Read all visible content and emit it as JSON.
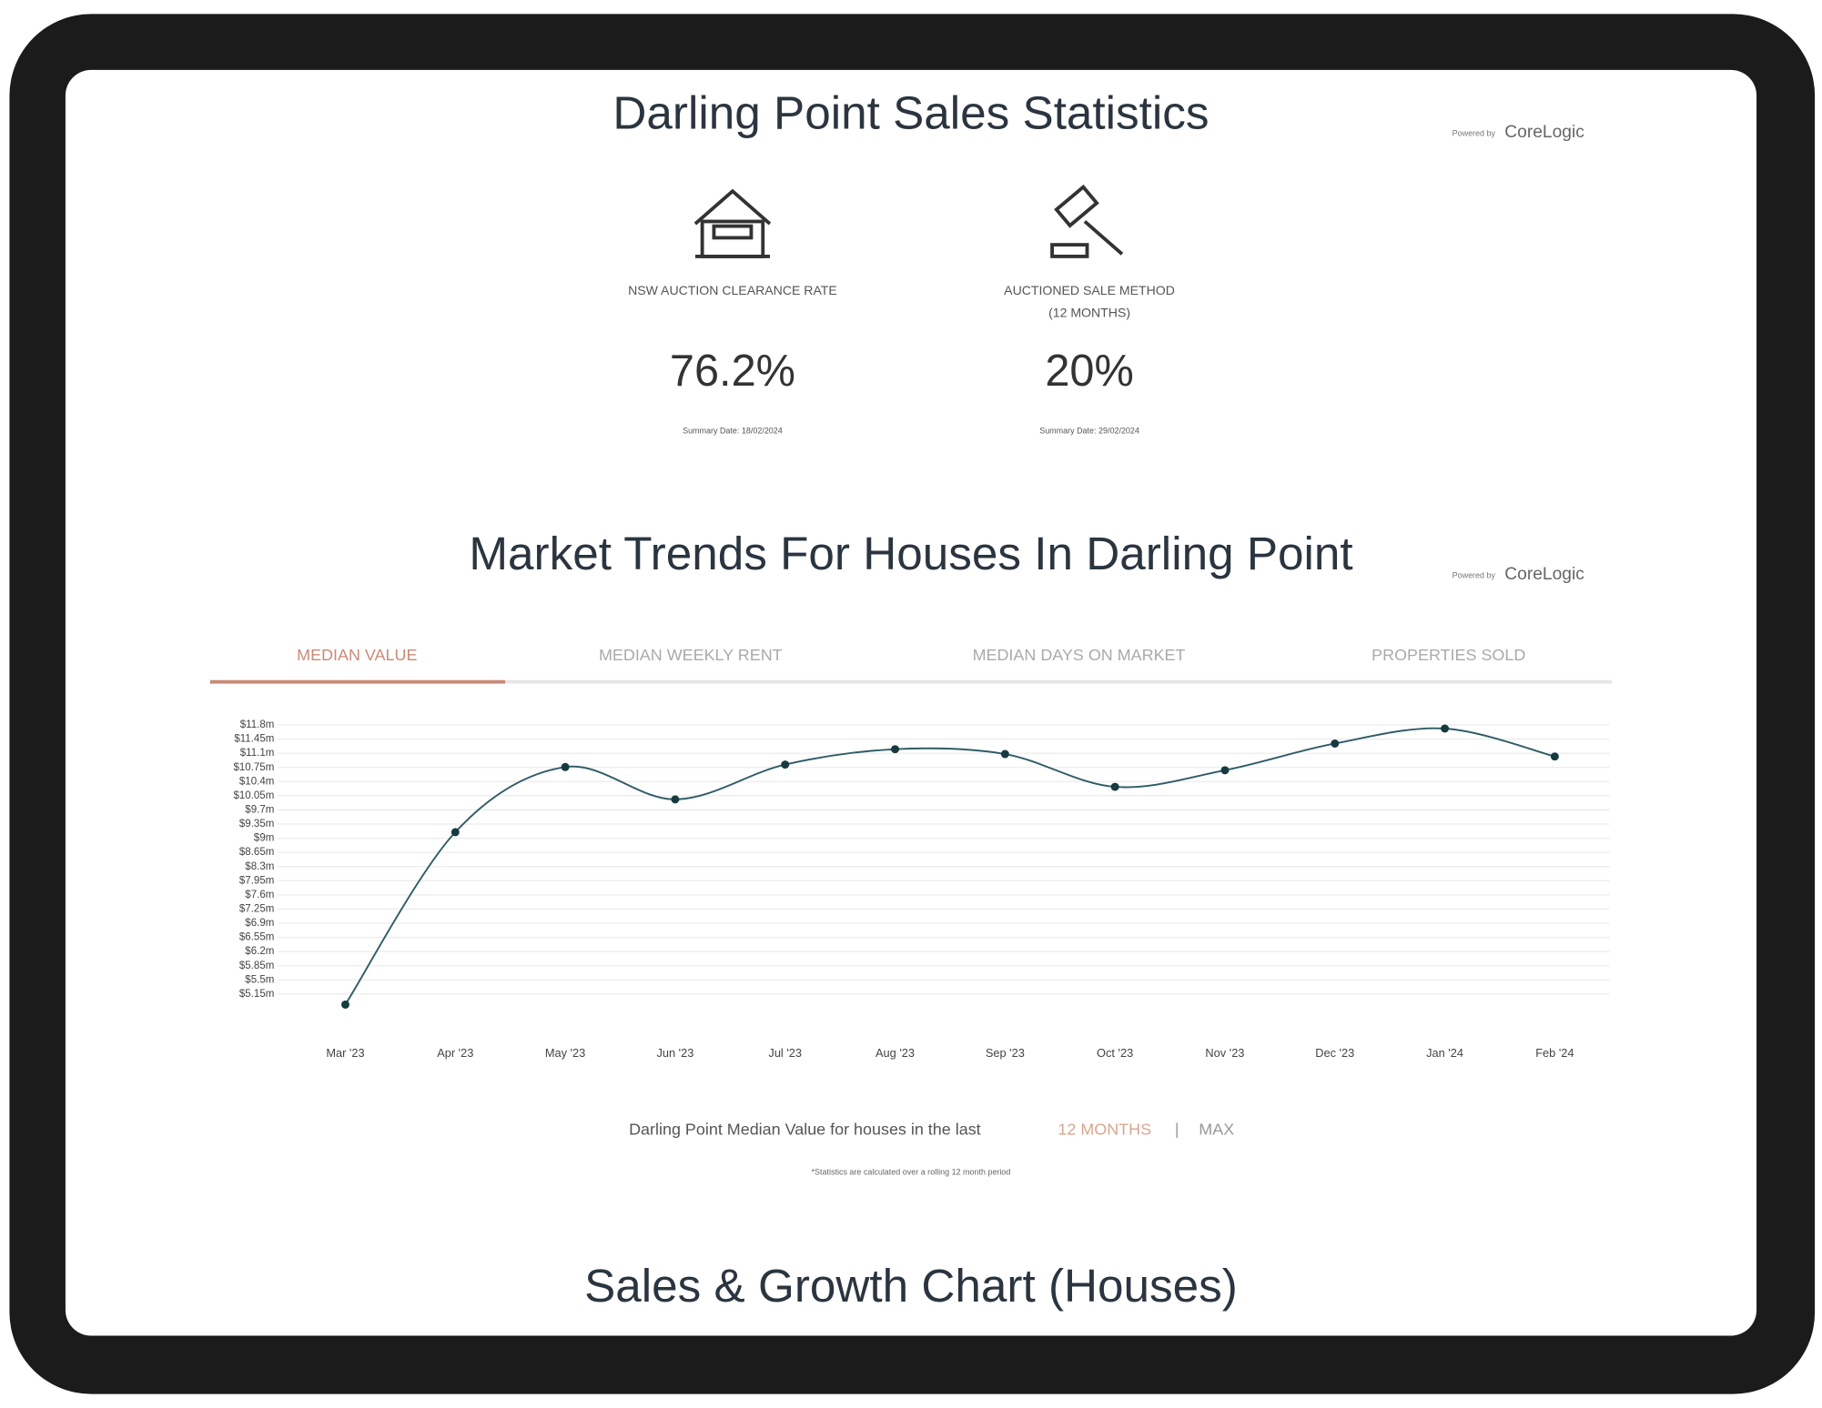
{
  "header": {
    "title": "Darling Point Sales Statistics",
    "powered_by": "Powered by",
    "brand": "CoreLogic"
  },
  "stats": [
    {
      "label": "NSW AUCTION CLEARANCE RATE",
      "value": "76.2%",
      "note": "Summary Date: 18/02/2024"
    },
    {
      "label": "AUCTIONED SALE METHOD",
      "sublabel": "(12 MONTHS)",
      "value": "20%",
      "note": "Summary Date: 29/02/2024"
    }
  ],
  "trends": {
    "title": "Market Trends For Houses In Darling Point",
    "powered_by": "Powered by",
    "brand": "CoreLogic",
    "tabs": [
      "MEDIAN VALUE",
      "MEDIAN WEEKLY RENT",
      "MEDIAN DAYS ON MARKET",
      "PROPERTIES SOLD"
    ],
    "caption": "Darling Point Median Value for houses in the last",
    "range_12": "12 MONTHS",
    "separator": "|",
    "range_max": "MAX",
    "footnote": "*Statistics are calculated over a rolling 12 month period"
  },
  "chart_data": {
    "type": "line",
    "categories": [
      "Mar '23",
      "Apr '23",
      "May '23",
      "Jun '23",
      "Jul '23",
      "Aug '23",
      "Sep '23",
      "Oct '23",
      "Nov '23",
      "Dec '23",
      "Jan '24",
      "Feb '24"
    ],
    "series": [
      {
        "name": "Median Value",
        "color": "#2f5d66",
        "values": [
          4890000,
          9150000,
          10760000,
          9960000,
          10820000,
          11200000,
          11080000,
          10270000,
          10680000,
          11340000,
          11710000,
          11020000
        ]
      }
    ],
    "ylim": [
      4800000,
      12000000
    ],
    "yticks": [
      {
        "value": 5150000,
        "label": "$5.15m"
      },
      {
        "value": 5500000,
        "label": "$5.5m"
      },
      {
        "value": 5850000,
        "label": "$5.85m"
      },
      {
        "value": 6200000,
        "label": "$6.2m"
      },
      {
        "value": 6550000,
        "label": "$6.55m"
      },
      {
        "value": 6900000,
        "label": "$6.9m"
      },
      {
        "value": 7250000,
        "label": "$7.25m"
      },
      {
        "value": 7600000,
        "label": "$7.6m"
      },
      {
        "value": 7950000,
        "label": "$7.95m"
      },
      {
        "value": 8300000,
        "label": "$8.3m"
      },
      {
        "value": 8650000,
        "label": "$8.65m"
      },
      {
        "value": 9000000,
        "label": "$9m"
      },
      {
        "value": 9350000,
        "label": "$9.35m"
      },
      {
        "value": 9700000,
        "label": "$9.7m"
      },
      {
        "value": 10050000,
        "label": "$10.05m"
      },
      {
        "value": 10400000,
        "label": "$10.4m"
      },
      {
        "value": 10750000,
        "label": "$10.75m"
      },
      {
        "value": 11100000,
        "label": "$11.1m"
      },
      {
        "value": 11450000,
        "label": "$11.45m"
      },
      {
        "value": 11800000,
        "label": "$11.8m"
      }
    ],
    "grid": true
  },
  "bottom": {
    "title": "Sales & Growth Chart (Houses)"
  }
}
